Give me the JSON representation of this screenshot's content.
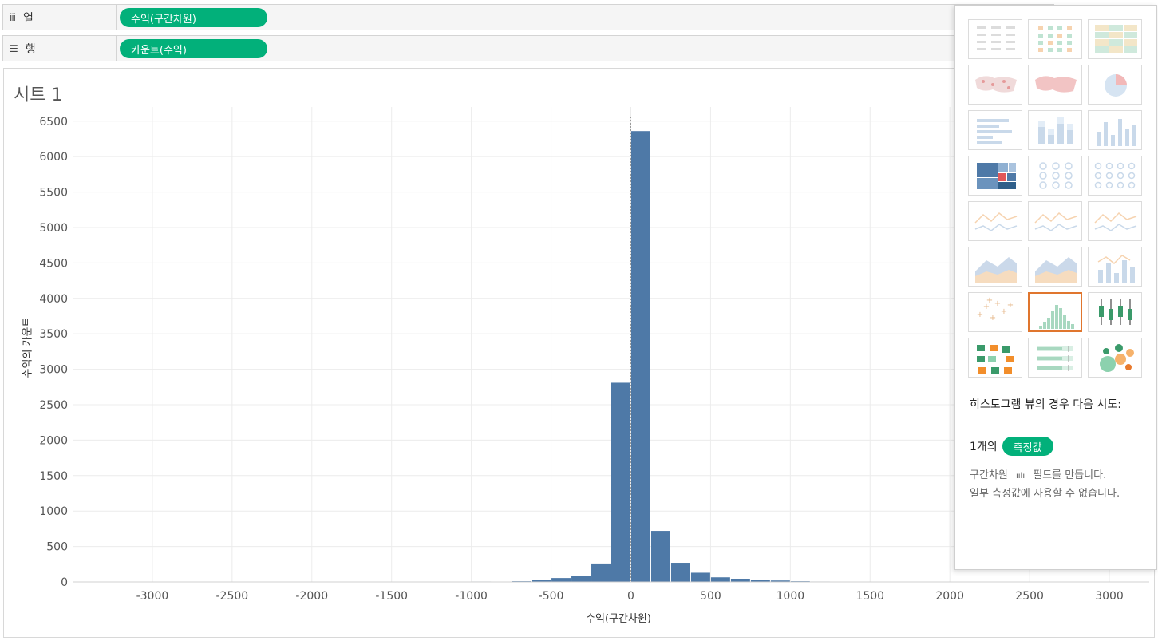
{
  "shelves": {
    "columns": {
      "icon": "columns-icon",
      "label": "열",
      "pill": "수익(구간차원)"
    },
    "rows": {
      "icon": "rows-icon",
      "label": "행",
      "pill": "카운트(수익)"
    }
  },
  "sheet": {
    "title": "시트 1"
  },
  "chart_data": {
    "type": "bar",
    "xlabel": "수익(구간차원)",
    "ylabel": "수익의 카운트",
    "xlim": [
      -3500,
      3250
    ],
    "ylim": [
      0,
      6700
    ],
    "bin_size": 125,
    "x_ticks": [
      -3000,
      -2500,
      -2000,
      -1500,
      -1000,
      -500,
      0,
      500,
      1000,
      1500,
      2000,
      2500,
      3000
    ],
    "y_ticks": [
      0,
      500,
      1000,
      1500,
      2000,
      2500,
      3000,
      3500,
      4000,
      4500,
      5000,
      5500,
      6000,
      6500
    ],
    "bins": [
      -1000,
      -875,
      -750,
      -625,
      -500,
      -375,
      -250,
      -125,
      0,
      125,
      250,
      375,
      500,
      625,
      750,
      875,
      1000,
      1125
    ],
    "values": [
      6,
      4,
      10,
      25,
      55,
      80,
      260,
      2810,
      6360,
      720,
      270,
      130,
      65,
      45,
      30,
      20,
      10,
      6
    ],
    "bar_color": "#4e79a7",
    "grid": true
  },
  "showme": {
    "hint_title": "히스토그램 뷰의 경우 다음 시도:",
    "hint_count": "1개의",
    "hint_pill": "측정값",
    "hint_line1_a": "구간차원",
    "hint_line1_b": "필드를 만듭니다.",
    "hint_line2": "일부 측정값에 사용할 수 없습니다.",
    "selected": "histogram",
    "thumbnails": [
      "text-table",
      "heat-map",
      "highlight-table",
      "symbol-map",
      "filled-map",
      "pie-chart",
      "horizontal-bars",
      "stacked-bars",
      "side-by-side-bars",
      "treemap",
      "circle-view",
      "side-by-side-circles",
      "line-continuous",
      "line-discrete",
      "dual-lines",
      "area-continuous",
      "area-discrete",
      "dual-combination",
      "scatter-plot",
      "histogram",
      "box-and-whisker",
      "gantt-chart",
      "bullet-graph",
      "packed-bubbles"
    ]
  }
}
